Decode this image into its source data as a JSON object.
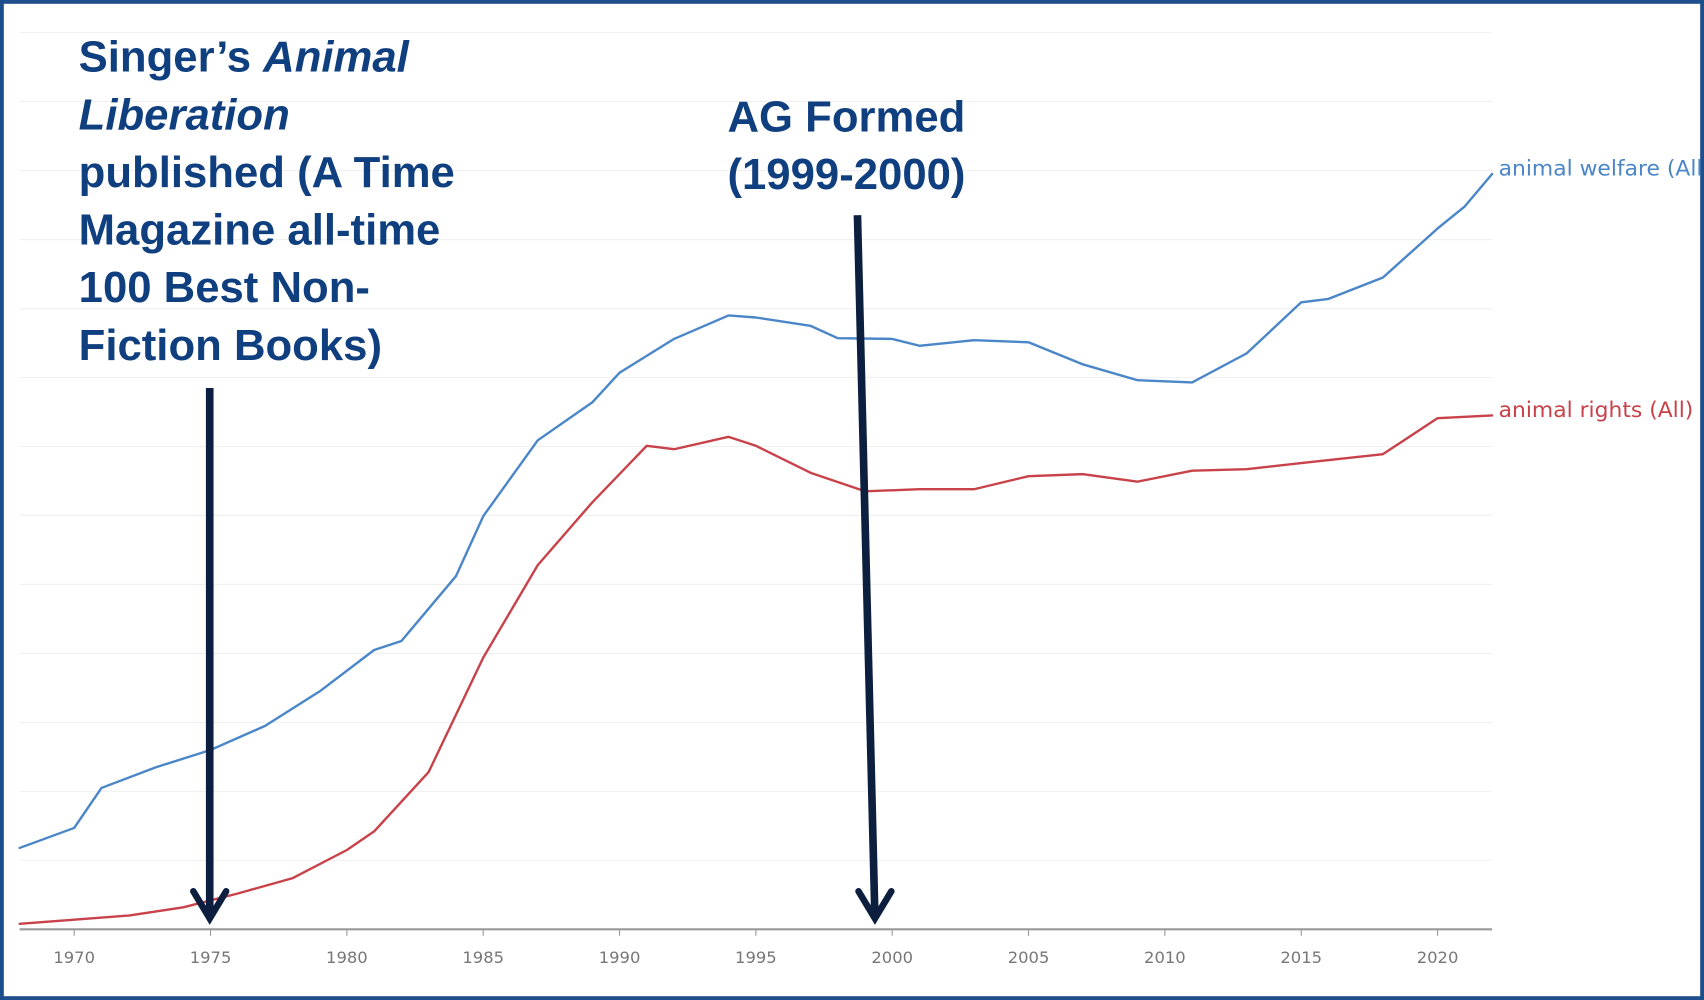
{
  "chart_data": {
    "type": "line",
    "xlim": [
      1968,
      2022
    ],
    "xticks": [
      1970,
      1975,
      1980,
      1985,
      1990,
      1995,
      2000,
      2005,
      2010,
      2015,
      2020
    ],
    "ylim": [
      0,
      13
    ],
    "yticks": [
      0,
      1,
      2,
      3,
      4,
      5,
      6,
      7,
      8,
      9,
      10,
      11,
      12,
      13
    ],
    "grid": true,
    "series": [
      {
        "name": "animal welfare (All)",
        "color": "#4a86c8",
        "x": [
          1968,
          1970,
          1971,
          1973,
          1975,
          1977,
          1979,
          1981,
          1982,
          1984,
          1985,
          1987,
          1989,
          1990,
          1992,
          1994,
          1995,
          1997,
          1998,
          2000,
          2001,
          2003,
          2005,
          2007,
          2009,
          2011,
          2013,
          2015,
          2016,
          2018,
          2020,
          2021,
          2022
        ],
        "values": [
          1.18,
          1.47,
          2.05,
          2.35,
          2.6,
          2.95,
          3.45,
          4.05,
          4.18,
          5.12,
          5.99,
          7.09,
          7.64,
          8.07,
          8.56,
          8.9,
          8.87,
          8.75,
          8.57,
          8.56,
          8.46,
          8.54,
          8.51,
          8.19,
          7.96,
          7.93,
          8.35,
          9.09,
          9.14,
          9.45,
          10.16,
          10.48,
          10.95
        ]
      },
      {
        "name": "animal rights (All)",
        "color": "#c8424a",
        "x": [
          1968,
          1970,
          1972,
          1974,
          1976,
          1978,
          1980,
          1981,
          1983,
          1985,
          1987,
          1989,
          1991,
          1992,
          1994,
          1995,
          1997,
          1999,
          2001,
          2003,
          2005,
          2007,
          2009,
          2011,
          2013,
          2015,
          2018,
          2020,
          2022
        ],
        "values": [
          0.08,
          0.14,
          0.2,
          0.32,
          0.52,
          0.74,
          1.15,
          1.42,
          2.28,
          3.94,
          5.28,
          6.19,
          7.01,
          6.96,
          7.14,
          7.01,
          6.62,
          6.35,
          6.38,
          6.38,
          6.57,
          6.6,
          6.49,
          6.65,
          6.67,
          6.76,
          6.89,
          7.41,
          7.45
        ]
      }
    ],
    "annotations": [
      {
        "lines": [
          [
            {
              "text": "Singer’s "
            },
            {
              "text": "Animal",
              "italic": true
            }
          ],
          [
            {
              "text": "Liberation",
              "italic": true
            }
          ],
          [
            {
              "text": "published (A Time"
            }
          ],
          [
            {
              "text": "Magazine all-time"
            }
          ],
          [
            {
              "text": "100 Best Non-"
            }
          ],
          [
            {
              "text": "Fiction Books)"
            }
          ]
        ]
      },
      {
        "lines": [
          [
            {
              "text": "AG Formed"
            }
          ],
          [
            {
              "text": "(1999-2000)"
            }
          ]
        ]
      }
    ]
  }
}
